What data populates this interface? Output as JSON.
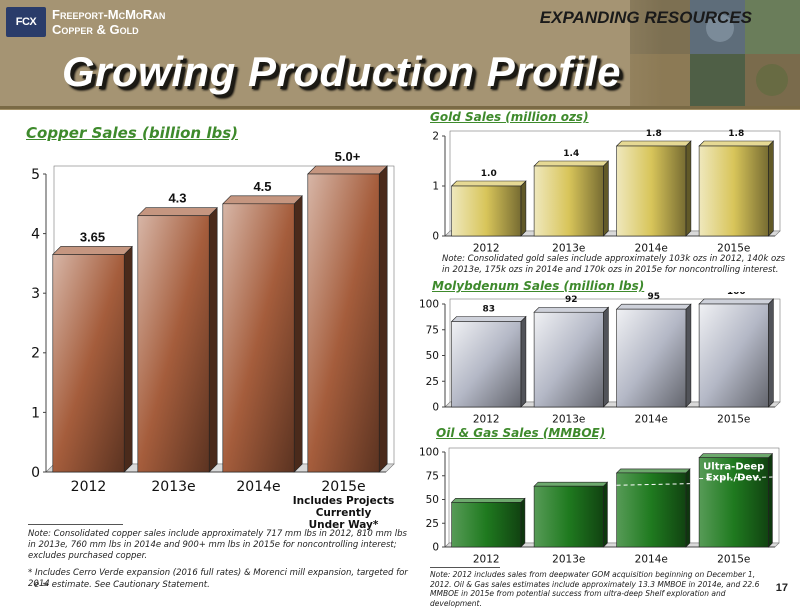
{
  "header": {
    "company_line1": "Freeport-McMoRan",
    "company_line2": "Copper & Gold",
    "logo_mark": "FCX",
    "banner": "EXPANDING RESOURCES",
    "title": "Growing Production Profile"
  },
  "page_number": "17",
  "colors": {
    "copper": "#a55d3c",
    "gold": "#d8c55a",
    "molybdenum": "#b4b8c6",
    "oil_gas": "#1f7a1f",
    "title_green": "#3e8a2c"
  },
  "chart_data": [
    {
      "type": "bar",
      "title": "Copper Sales (billion lbs)",
      "categories": [
        "2012",
        "2013e",
        "2014e",
        "2015e"
      ],
      "values": [
        3.65,
        4.3,
        4.5,
        5.0
      ],
      "data_labels": [
        "3.65",
        "4.3",
        "4.5",
        "5.0+"
      ],
      "yticks": [
        "0",
        "1",
        "2",
        "3",
        "4",
        "5"
      ],
      "ylim": [
        0,
        5
      ],
      "annotation": "Includes Projects Currently Under Way*"
    },
    {
      "type": "bar",
      "title": "Gold Sales (million ozs)",
      "categories": [
        "2012",
        "2013e",
        "2014e",
        "2015e"
      ],
      "values": [
        1.0,
        1.4,
        1.8,
        1.8
      ],
      "data_labels": [
        "1.0",
        "1.4",
        "1.8",
        "1.8"
      ],
      "yticks": [
        "0",
        "1",
        "2"
      ],
      "ylim": [
        0,
        2
      ]
    },
    {
      "type": "bar",
      "title": "Molybdenum Sales (million lbs)",
      "categories": [
        "2012",
        "2013e",
        "2014e",
        "2015e"
      ],
      "values": [
        83,
        92,
        95,
        100
      ],
      "data_labels": [
        "83",
        "92",
        "95",
        "100"
      ],
      "yticks": [
        "0",
        "25",
        "50",
        "75",
        "100"
      ],
      "ylim": [
        0,
        100
      ]
    },
    {
      "type": "bar",
      "title": "Oil & Gas Sales (MMBOE)",
      "categories": [
        "2012",
        "2013e",
        "2014e",
        "2015e"
      ],
      "values": [
        47,
        64,
        78,
        94
      ],
      "dashed_split": [
        null,
        null,
        65,
        72
      ],
      "yticks": [
        "0",
        "25",
        "50",
        "75",
        "100"
      ],
      "ylim": [
        0,
        100
      ],
      "annotation": "Ultra-Deep Expl./Dev."
    }
  ],
  "notes": {
    "copper": "Note:  Consolidated copper sales include approximately 717 mm lbs in 2012, 810 mm lbs in 2013e, 760 mm lbs in 2014e and 900+ mm lbs in 2015e for noncontrolling interest; excludes purchased copper.",
    "copper_footnote": "* Includes Cerro Verde expansion (2016 full rates) & Morenci mill expansion, targeted for 2014",
    "estimate": "e = estimate. See Cautionary Statement.",
    "gold": "Note:  Consolidated gold sales include approximately 103k ozs in 2012, 140k ozs in 2013e, 175k ozs in 2014e and 170k ozs in 2015e for noncontrolling interest.",
    "oil_gas": "Note:  2012 includes sales from deepwater GOM acquisition beginning on December 1, 2012. Oil & Gas sales estimates include approximately 13.3 MMBOE in 2014e, and 22.6 MMBOE in 2015e from potential success from ultra-deep Shelf exploration and development."
  }
}
